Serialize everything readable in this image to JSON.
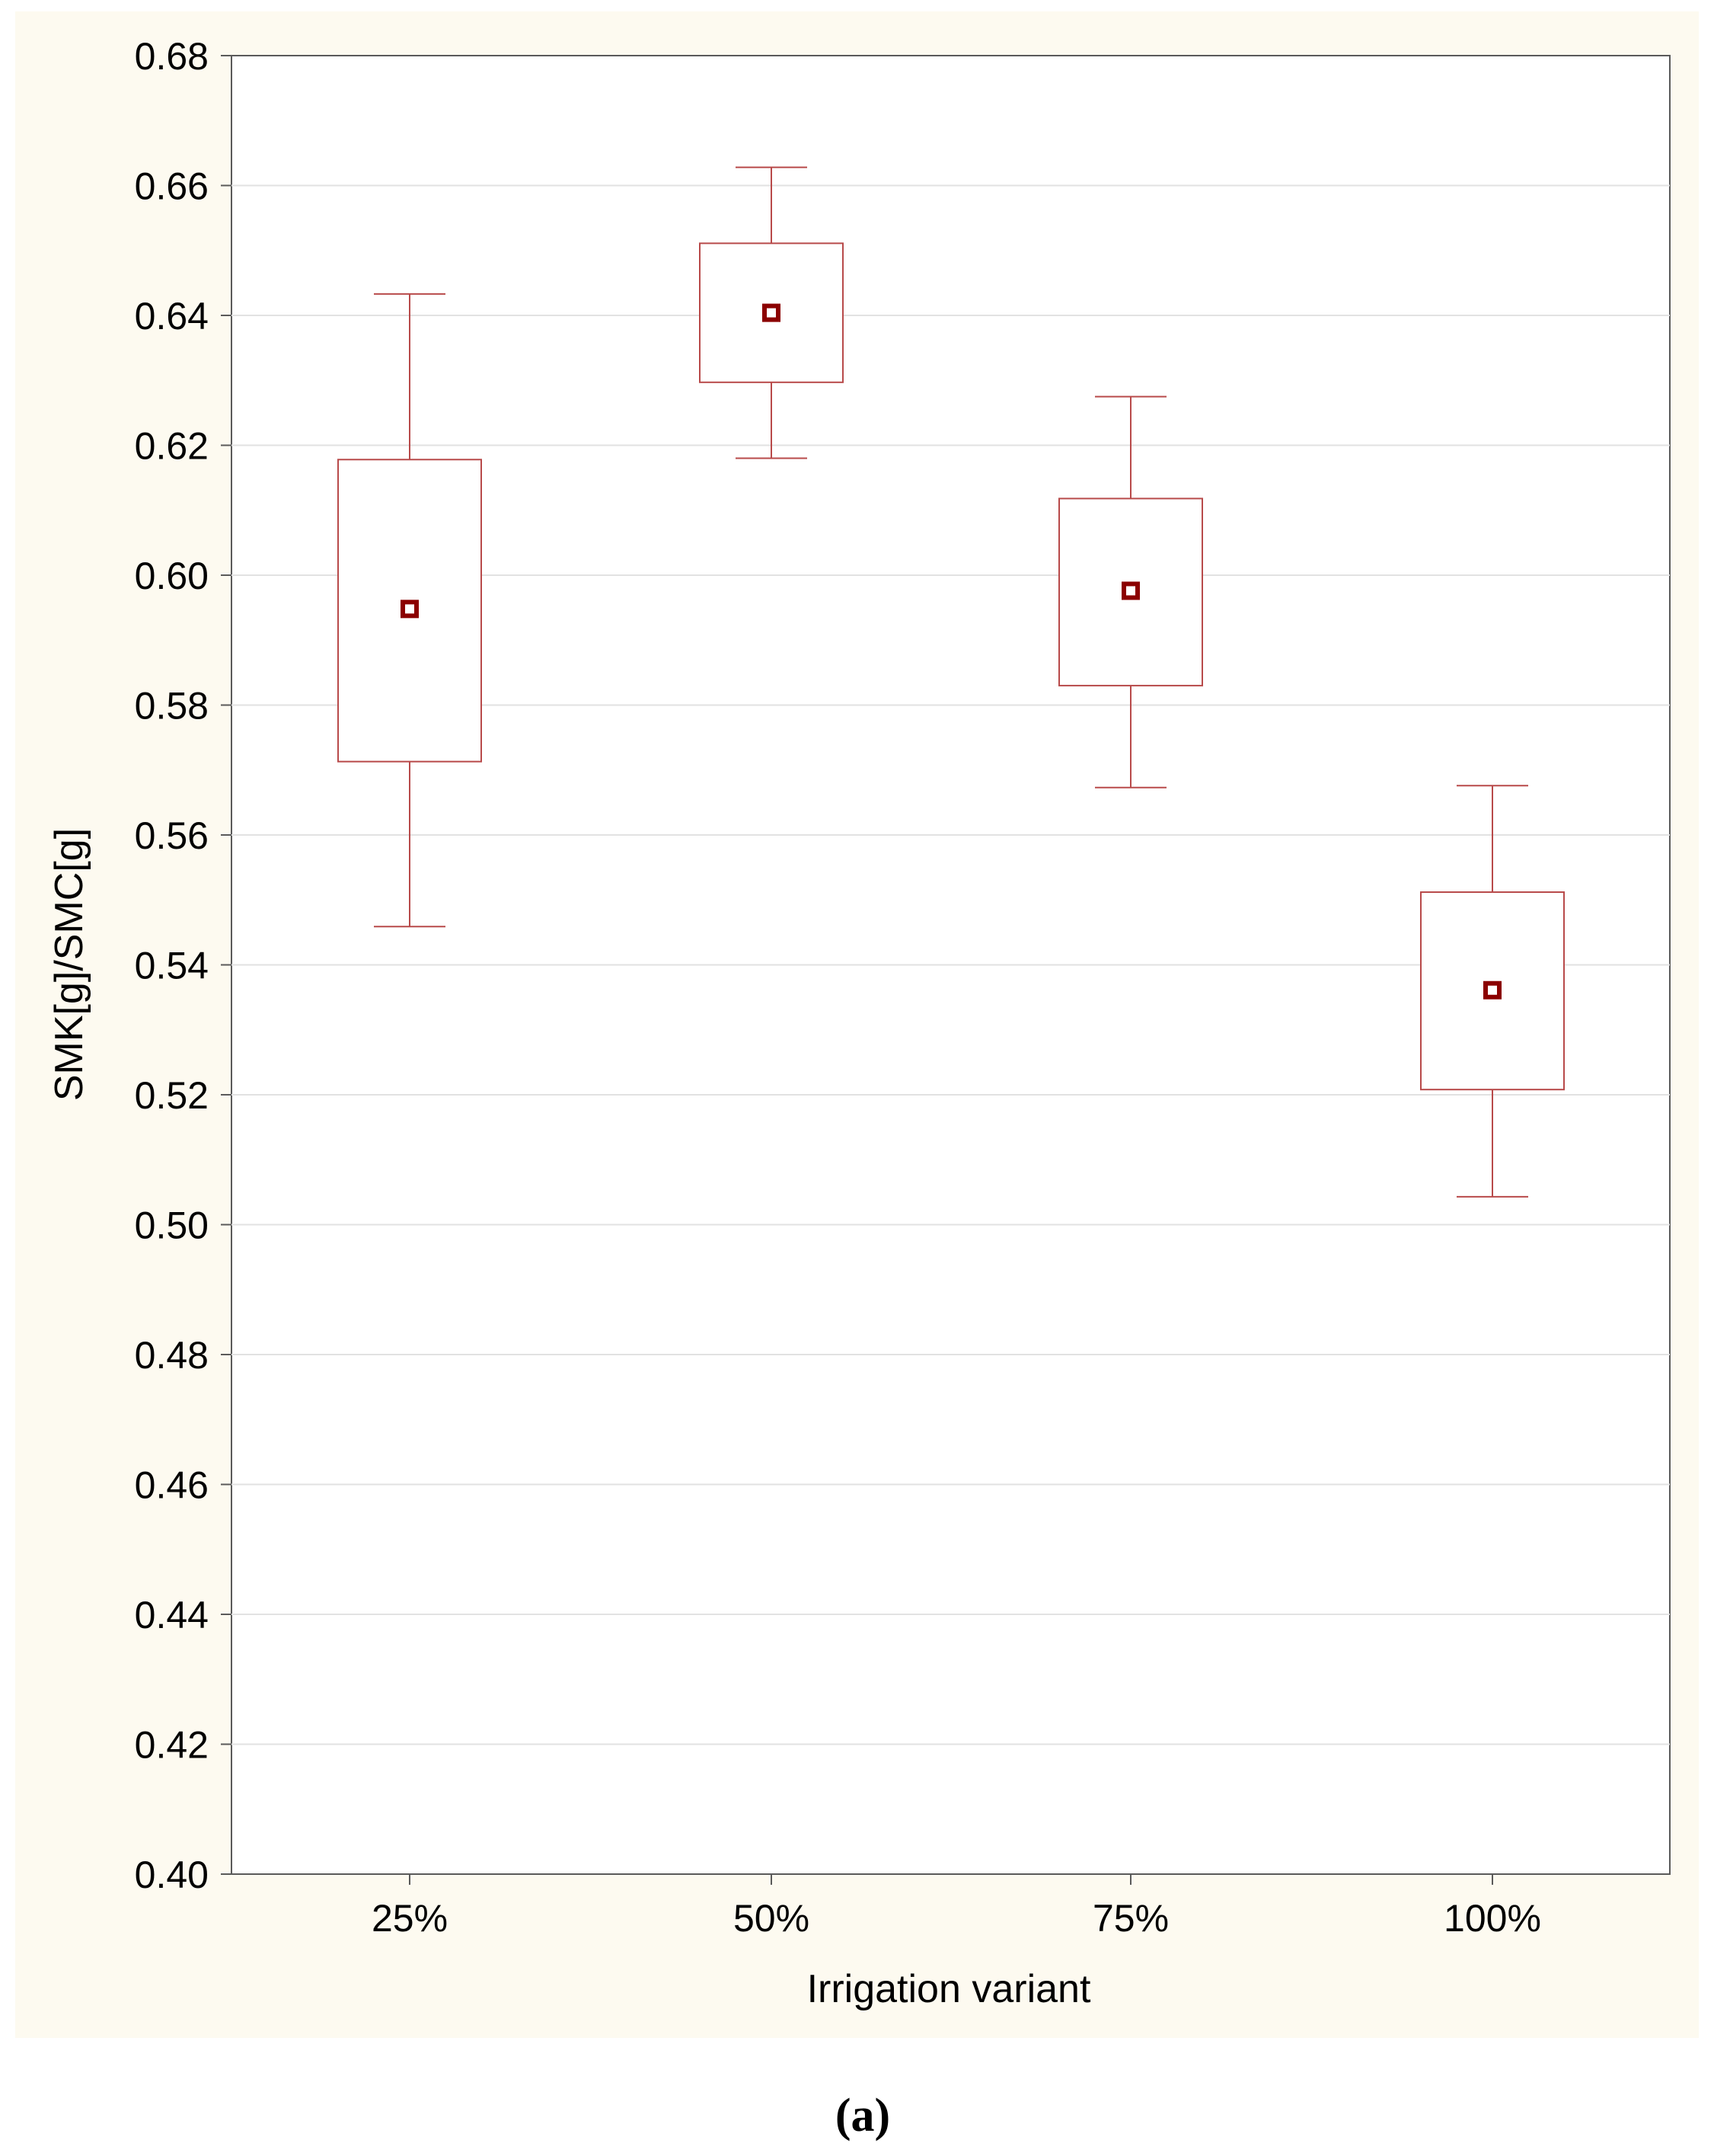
{
  "chart_data": {
    "type": "box",
    "title": "",
    "xlabel": "Irrigation variant",
    "ylabel": "SMK[g]/SMC[g]",
    "categories": [
      "25%",
      "50%",
      "75%",
      "100%"
    ],
    "ylim": [
      0.4,
      0.68
    ],
    "yticks": [
      0.4,
      0.42,
      0.44,
      0.46,
      0.48,
      0.5,
      0.52,
      0.54,
      0.56,
      0.58,
      0.6,
      0.62,
      0.64,
      0.66,
      0.68
    ],
    "ytick_labels": [
      "0.40",
      "0.42",
      "0.44",
      "0.46",
      "0.48",
      "0.50",
      "0.52",
      "0.54",
      "0.56",
      "0.58",
      "0.60",
      "0.62",
      "0.64",
      "0.66",
      "0.68"
    ],
    "grid": true,
    "series": [
      {
        "category": "25%",
        "center": 0.5948,
        "box_low": 0.5713,
        "box_high": 0.6178,
        "whisker_low": 0.5459,
        "whisker_high": 0.6433
      },
      {
        "category": "50%",
        "center": 0.6404,
        "box_low": 0.6297,
        "box_high": 0.6511,
        "whisker_low": 0.618,
        "whisker_high": 0.6628
      },
      {
        "category": "75%",
        "center": 0.5976,
        "box_low": 0.583,
        "box_high": 0.6118,
        "whisker_low": 0.5673,
        "whisker_high": 0.6275
      },
      {
        "category": "100%",
        "center": 0.5361,
        "box_low": 0.5208,
        "box_high": 0.5512,
        "whisker_low": 0.5043,
        "whisker_high": 0.5676
      }
    ]
  },
  "caption": "(a)",
  "colors": {
    "panel_background": "#FDFAF0",
    "plot_background": "#FFFFFF",
    "box_stroke": "#B84A4A",
    "marker": "#8B0000",
    "axis": "#5A5A5A",
    "grid": "#E2E2E2",
    "text": "#000000"
  }
}
